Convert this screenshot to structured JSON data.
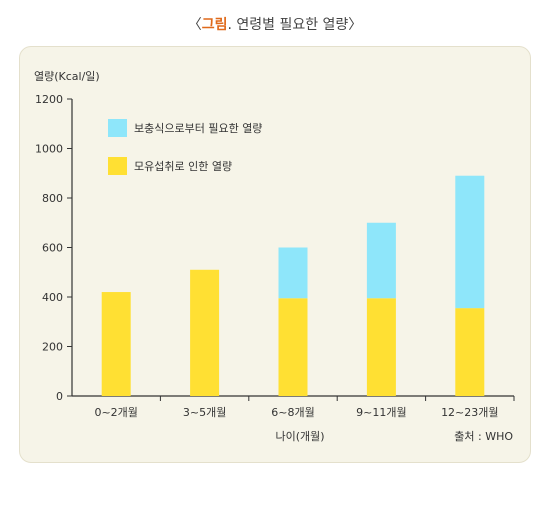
{
  "figure": {
    "title_open": "〈",
    "title_tag": "그림",
    "title_rest": ". 연령별 필요한 열량〉"
  },
  "colors": {
    "supplement": "#8ee6fa",
    "breastmilk": "#ffe033",
    "panel_bg": "#f6f4e8",
    "accent": "#e06a1b"
  },
  "chart_data": {
    "type": "bar",
    "stacked": true,
    "ylabel": "열량(Kcal/일)",
    "xlabel": "나이(개월)",
    "source": "출처 : WHO",
    "ylim": [
      0,
      1200
    ],
    "yticks": [
      0,
      200,
      400,
      600,
      800,
      1000,
      1200
    ],
    "categories": [
      "0~2개월",
      "3~5개월",
      "6~8개월",
      "9~11개월",
      "12~23개월"
    ],
    "series": [
      {
        "name": "모유섭취로 인한 열량",
        "values": [
          420,
          510,
          395,
          395,
          355
        ]
      },
      {
        "name": "보충식으로부터 필요한 열량",
        "values": [
          0,
          0,
          205,
          305,
          535
        ]
      }
    ],
    "legend": "top-left"
  }
}
